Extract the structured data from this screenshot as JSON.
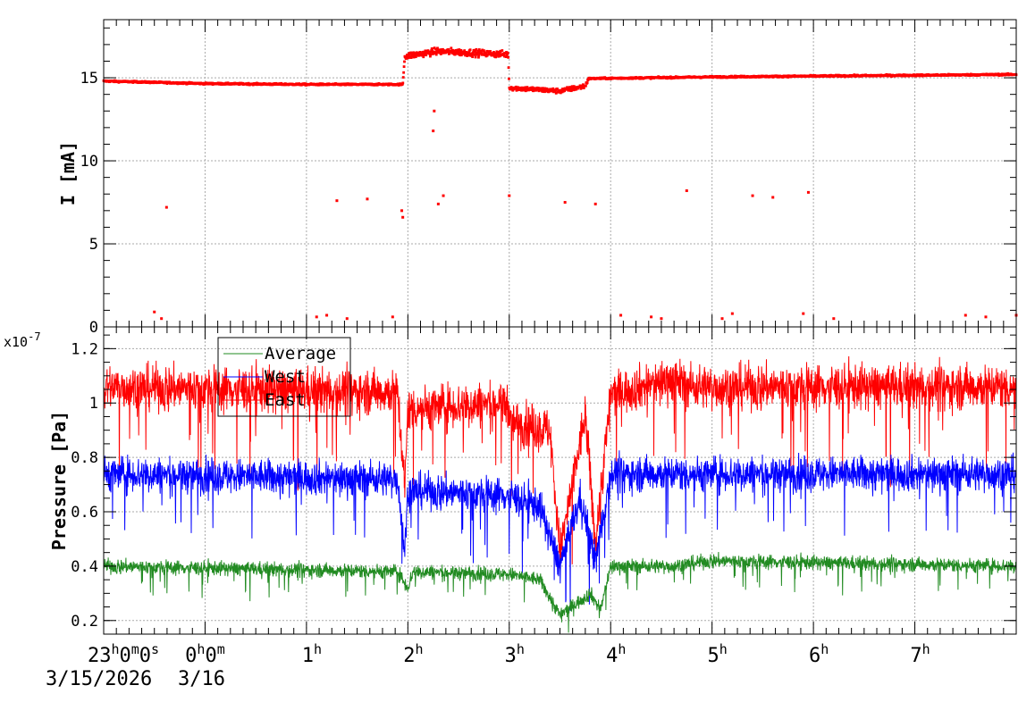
{
  "chart_data": [
    {
      "type": "scatter",
      "ylabel": "I [mA]",
      "ylim": [
        0,
        18.5
      ],
      "yticks": [
        0,
        5,
        10,
        15
      ],
      "grid": true,
      "time_range_hours_from_23h": [
        0,
        9.0
      ],
      "series": [
        {
          "color": "#ff0000",
          "profile": [
            {
              "t": 0.0,
              "y": 14.8
            },
            {
              "t": 1.0,
              "y": 14.65
            },
            {
              "t": 2.0,
              "y": 14.6
            },
            {
              "t": 2.95,
              "y": 14.6
            },
            {
              "t": 2.97,
              "y": 16.3
            },
            {
              "t": 3.3,
              "y": 16.6
            },
            {
              "t": 3.99,
              "y": 16.4
            },
            {
              "t": 4.0,
              "y": 14.4
            },
            {
              "t": 4.5,
              "y": 14.2
            },
            {
              "t": 4.75,
              "y": 14.5
            },
            {
              "t": 4.78,
              "y": 14.95
            },
            {
              "t": 6.0,
              "y": 15.05
            },
            {
              "t": 9.0,
              "y": 15.2
            }
          ],
          "outliers": [
            {
              "t": 0.62,
              "y": 7.2
            },
            {
              "t": 2.3,
              "y": 7.6
            },
            {
              "t": 2.6,
              "y": 7.7
            },
            {
              "t": 2.94,
              "y": 7.0
            },
            {
              "t": 2.95,
              "y": 6.6
            },
            {
              "t": 3.25,
              "y": 11.8
            },
            {
              "t": 3.26,
              "y": 13.0
            },
            {
              "t": 3.3,
              "y": 7.4
            },
            {
              "t": 3.35,
              "y": 7.9
            },
            {
              "t": 4.0,
              "y": 7.9
            },
            {
              "t": 4.55,
              "y": 7.5
            },
            {
              "t": 4.85,
              "y": 7.4
            },
            {
              "t": 5.75,
              "y": 8.2
            },
            {
              "t": 6.4,
              "y": 7.9
            },
            {
              "t": 6.6,
              "y": 7.8
            },
            {
              "t": 6.95,
              "y": 8.1
            },
            {
              "t": 0.5,
              "y": 0.9
            },
            {
              "t": 0.57,
              "y": 0.5
            },
            {
              "t": 2.1,
              "y": 0.6
            },
            {
              "t": 2.2,
              "y": 0.7
            },
            {
              "t": 2.4,
              "y": 0.5
            },
            {
              "t": 2.85,
              "y": 0.6
            },
            {
              "t": 5.1,
              "y": 0.7
            },
            {
              "t": 5.4,
              "y": 0.6
            },
            {
              "t": 5.5,
              "y": 0.5
            },
            {
              "t": 6.1,
              "y": 0.5
            },
            {
              "t": 6.2,
              "y": 0.8
            },
            {
              "t": 6.9,
              "y": 0.8
            },
            {
              "t": 7.2,
              "y": 0.5
            },
            {
              "t": 8.5,
              "y": 0.7
            },
            {
              "t": 8.7,
              "y": 0.6
            },
            {
              "t": 9.0,
              "y": 0.7
            }
          ]
        }
      ]
    },
    {
      "type": "line",
      "ylabel": "Pressure [Pa]",
      "exponent_label": "x10",
      "exponent_power": "-7",
      "ylim": [
        0.15,
        1.28
      ],
      "yticks": [
        "0.2",
        "0.4",
        "0.6",
        "0.8",
        "1",
        "1.2"
      ],
      "grid": true,
      "legend_position": "top-left",
      "time_range_hours_from_23h": [
        0,
        9.0
      ],
      "series": [
        {
          "name": "Average",
          "color": "#228b22",
          "noise": 0.045,
          "profile": [
            {
              "t": 0.0,
              "y": 0.4
            },
            {
              "t": 2.9,
              "y": 0.38
            },
            {
              "t": 3.0,
              "y": 0.32
            },
            {
              "t": 3.05,
              "y": 0.38
            },
            {
              "t": 4.0,
              "y": 0.37
            },
            {
              "t": 4.3,
              "y": 0.35
            },
            {
              "t": 4.5,
              "y": 0.22
            },
            {
              "t": 4.8,
              "y": 0.3
            },
            {
              "t": 4.9,
              "y": 0.24
            },
            {
              "t": 5.0,
              "y": 0.4
            },
            {
              "t": 5.6,
              "y": 0.4
            },
            {
              "t": 6.0,
              "y": 0.42
            },
            {
              "t": 9.0,
              "y": 0.4
            }
          ]
        },
        {
          "name": "West",
          "color": "#0000ff",
          "noise": 0.11,
          "profile": [
            {
              "t": 0.0,
              "y": 0.74
            },
            {
              "t": 2.9,
              "y": 0.72
            },
            {
              "t": 2.97,
              "y": 0.45
            },
            {
              "t": 3.0,
              "y": 0.68
            },
            {
              "t": 4.0,
              "y": 0.66
            },
            {
              "t": 4.3,
              "y": 0.62
            },
            {
              "t": 4.5,
              "y": 0.4
            },
            {
              "t": 4.7,
              "y": 0.65
            },
            {
              "t": 4.85,
              "y": 0.42
            },
            {
              "t": 5.0,
              "y": 0.74
            },
            {
              "t": 9.0,
              "y": 0.74
            }
          ]
        },
        {
          "name": "East",
          "color": "#ff0000",
          "noise": 0.14,
          "profile": [
            {
              "t": 0.0,
              "y": 1.06
            },
            {
              "t": 2.9,
              "y": 1.04
            },
            {
              "t": 2.97,
              "y": 0.68
            },
            {
              "t": 3.0,
              "y": 0.98
            },
            {
              "t": 3.99,
              "y": 1.0
            },
            {
              "t": 4.0,
              "y": 0.93
            },
            {
              "t": 4.4,
              "y": 0.9
            },
            {
              "t": 4.5,
              "y": 0.45
            },
            {
              "t": 4.75,
              "y": 0.96
            },
            {
              "t": 4.85,
              "y": 0.48
            },
            {
              "t": 5.0,
              "y": 1.03
            },
            {
              "t": 5.6,
              "y": 1.09
            },
            {
              "t": 5.8,
              "y": 1.06
            },
            {
              "t": 9.0,
              "y": 1.06
            }
          ]
        }
      ]
    }
  ],
  "x_axis": {
    "major_ticks": [
      {
        "t": 1,
        "main": "0",
        "sup1": "h",
        "mid": "0",
        "sup2": "m",
        "tail": ""
      },
      {
        "t": 2,
        "main": "1",
        "sup1": "h",
        "mid": "",
        "sup2": "",
        "tail": ""
      },
      {
        "t": 3,
        "main": "2",
        "sup1": "h",
        "mid": "",
        "sup2": "",
        "tail": ""
      },
      {
        "t": 4,
        "main": "3",
        "sup1": "h",
        "mid": "",
        "sup2": "",
        "tail": ""
      },
      {
        "t": 5,
        "main": "4",
        "sup1": "h",
        "mid": "",
        "sup2": "",
        "tail": ""
      },
      {
        "t": 6,
        "main": "5",
        "sup1": "h",
        "mid": "",
        "sup2": "",
        "tail": ""
      },
      {
        "t": 7,
        "main": "6",
        "sup1": "h",
        "mid": "",
        "sup2": "",
        "tail": ""
      },
      {
        "t": 8,
        "main": "7",
        "sup1": "h",
        "mid": "",
        "sup2": "",
        "tail": ""
      }
    ],
    "first_label": {
      "main": "23",
      "sup1": "h",
      "mid": "0",
      "sup2": "m",
      "mid2": "0",
      "sup3": "s"
    },
    "date_start": "3/15/2026",
    "date_next": "3/16"
  }
}
